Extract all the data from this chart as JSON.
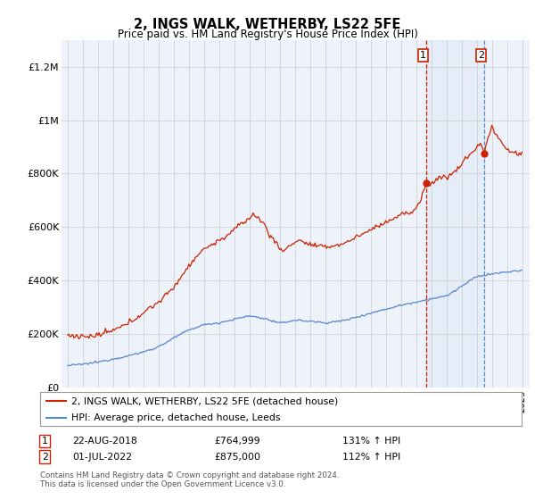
{
  "title": "2, INGS WALK, WETHERBY, LS22 5FE",
  "subtitle": "Price paid vs. HM Land Registry's House Price Index (HPI)",
  "ylim": [
    0,
    1300000
  ],
  "yticks": [
    0,
    200000,
    400000,
    600000,
    800000,
    1000000,
    1200000
  ],
  "ytick_labels": [
    "£0",
    "£200K",
    "£400K",
    "£600K",
    "£800K",
    "£1M",
    "£1.2M"
  ],
  "hpi_color": "#5588cc",
  "price_color": "#cc2200",
  "annotation1_year": 2018.65,
  "annotation1_value": 764999,
  "annotation1_date": "22-AUG-2018",
  "annotation1_price": "£764,999",
  "annotation1_hpi": "131% ↑ HPI",
  "annotation2_year": 2022.5,
  "annotation2_value": 875000,
  "annotation2_date": "01-JUL-2022",
  "annotation2_price": "£875,000",
  "annotation2_hpi": "112% ↑ HPI",
  "legend_label1": "2, INGS WALK, WETHERBY, LS22 5FE (detached house)",
  "legend_label2": "HPI: Average price, detached house, Leeds",
  "footer": "Contains HM Land Registry data © Crown copyright and database right 2024.\nThis data is licensed under the Open Government Licence v3.0.",
  "background_color": "#ffffff",
  "plot_bg_color": "#eef2fb",
  "shade_color": "#dce8f5",
  "grid_color": "#cccccc"
}
